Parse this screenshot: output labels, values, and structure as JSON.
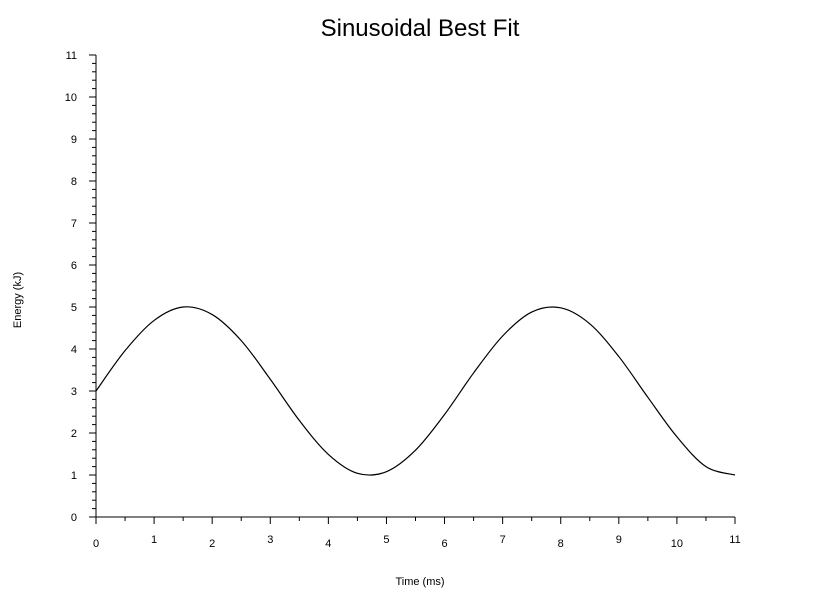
{
  "chart_data": {
    "type": "line",
    "title": "Sinusoidal Best Fit",
    "xlabel": "Time (ms)",
    "ylabel": "Energy (kJ)",
    "xlim": [
      0,
      11
    ],
    "ylim": [
      0,
      11
    ],
    "x_ticks": [
      "0",
      "1",
      "2",
      "3",
      "4",
      "5",
      "6",
      "7",
      "8",
      "9",
      "10",
      "11"
    ],
    "y_ticks": [
      "0",
      "1",
      "2",
      "3",
      "4",
      "5",
      "6",
      "7",
      "8",
      "9",
      "10",
      "11"
    ],
    "grid": false,
    "series": [
      {
        "x": [
          0,
          0.5,
          1,
          1.5,
          2,
          2.5,
          3,
          3.5,
          4,
          4.5,
          5,
          5.5,
          6,
          6.5,
          7,
          7.5,
          8,
          8.5,
          9,
          9.5,
          10,
          10.5,
          11
        ],
        "values": [
          3.0,
          3.96,
          4.68,
          5.0,
          4.82,
          4.2,
          3.28,
          2.3,
          1.49,
          1.04,
          1.08,
          1.59,
          2.44,
          3.43,
          4.31,
          4.88,
          4.98,
          4.6,
          3.82,
          2.85,
          1.91,
          1.2,
          1.0
        ],
        "color": "#000000"
      }
    ]
  }
}
